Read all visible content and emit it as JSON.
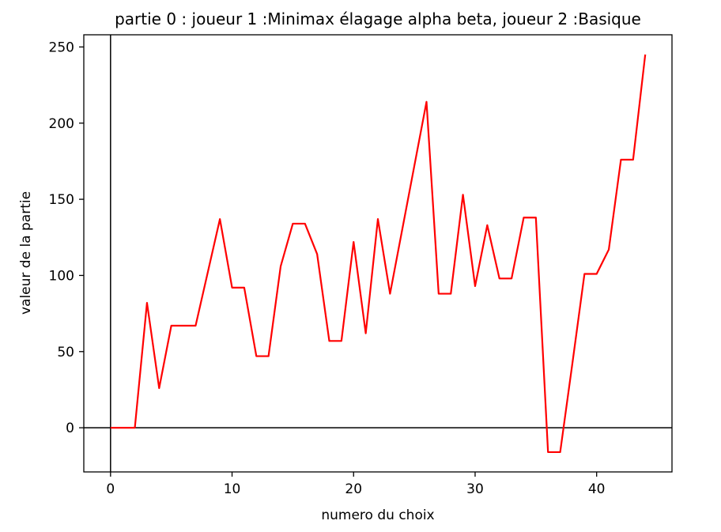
{
  "chart_data": {
    "type": "line",
    "title": "partie 0 : joueur 1 :Minimax élagage alpha beta, joueur 2 :Basique",
    "xlabel": "numero du choix",
    "ylabel": "valeur de la partie",
    "xlim": [
      -2.2,
      46.2
    ],
    "ylim": [
      -29,
      258
    ],
    "xticks": [
      0,
      10,
      20,
      30,
      40
    ],
    "yticks": [
      0,
      50,
      100,
      150,
      200,
      250
    ],
    "grid": false,
    "reference_lines": {
      "x": 0,
      "y": 0
    },
    "series": [
      {
        "color": "#ff0000",
        "x": [
          0,
          1,
          2,
          3,
          4,
          5,
          6,
          7,
          8,
          9,
          10,
          11,
          12,
          13,
          14,
          15,
          16,
          17,
          18,
          19,
          20,
          21,
          22,
          23,
          24,
          25,
          26,
          27,
          28,
          29,
          30,
          31,
          32,
          33,
          34,
          35,
          36,
          37,
          38,
          39,
          40,
          41,
          42,
          43,
          44
        ],
        "values": [
          0,
          0,
          0,
          82,
          26,
          67,
          67,
          67,
          102,
          137,
          92,
          92,
          47,
          47,
          106,
          134,
          134,
          114,
          57,
          57,
          122,
          62,
          137,
          88,
          130,
          172,
          214,
          88,
          88,
          153,
          93,
          133,
          98,
          98,
          138,
          138,
          -16,
          -16,
          42,
          101,
          101,
          117,
          176,
          176,
          245
        ]
      }
    ]
  }
}
